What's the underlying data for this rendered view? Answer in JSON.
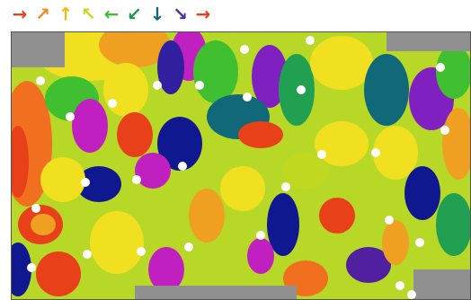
{
  "legend": {
    "arrows": [
      {
        "text": "→",
        "color": "#e8401c"
      },
      {
        "text": "↗",
        "color": "#f08a20"
      },
      {
        "text": "↑",
        "color": "#f0b818"
      },
      {
        "text": "↖",
        "color": "#c8d820"
      },
      {
        "text": "←",
        "color": "#40c030"
      },
      {
        "text": "↙",
        "color": "#209848"
      },
      {
        "text": "↓",
        "color": "#106878"
      },
      {
        "text": "↘",
        "color": "#5030a0"
      },
      {
        "text": "→",
        "color": "#e8401c"
      }
    ]
  }
}
